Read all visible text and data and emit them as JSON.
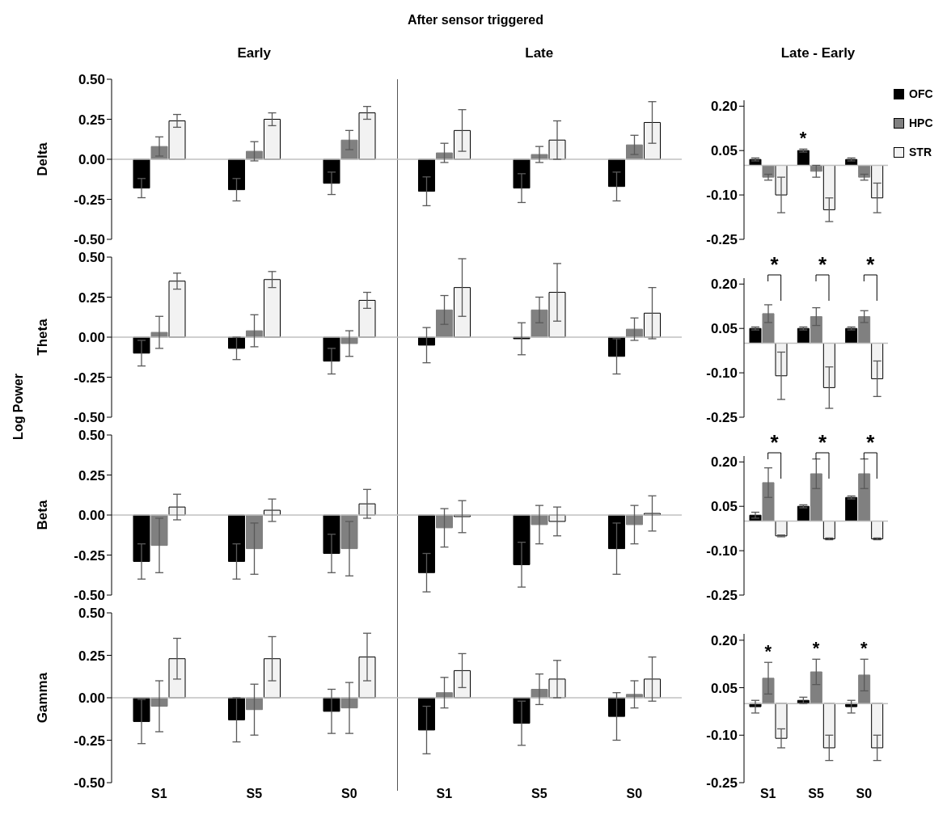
{
  "chart_data": [
    {
      "type": "bar",
      "ylabel": "Delta",
      "annotations": [
        "After sensor triggered",
        "Early",
        "Late",
        "Log Power"
      ],
      "categories": [
        null,
        null,
        null,
        null,
        null,
        null
      ],
      "series": [
        {
          "color": "#000000",
          "values": [
            -0.18,
            -0.19,
            -0.15,
            -0.2,
            -0.18,
            -0.17
          ],
          "errors": [
            0.06,
            0.07,
            0.07,
            0.09,
            0.09,
            0.09
          ]
        },
        {
          "color": "#808080",
          "values": [
            0.08,
            0.05,
            0.12,
            0.04,
            0.03,
            0.09
          ],
          "errors": [
            0.06,
            0.06,
            0.06,
            0.06,
            0.05,
            0.06
          ]
        },
        {
          "color": "#f2f2f2",
          "values": [
            0.24,
            0.25,
            0.29,
            0.18,
            0.12,
            0.23
          ],
          "errors": [
            0.04,
            0.04,
            0.04,
            0.13,
            0.12,
            0.13
          ]
        }
      ],
      "ylim": [
        -0.5,
        0.5
      ],
      "yticks": [
        {
          "value": 0.5,
          "label": "0.50"
        },
        {
          "value": 0.25,
          "label": "0.25"
        },
        {
          "value": 0,
          "label": "0.00"
        },
        {
          "value": -0.25,
          "label": "-0.25"
        },
        {
          "value": -0.5,
          "label": "-0.50"
        }
      ],
      "tick_labels": "y"
    },
    {
      "type": "bar",
      "title": "Late - Early",
      "legend": "top right",
      "categories": [
        null,
        null,
        null
      ],
      "annotations": [
        "*"
      ],
      "series": [
        {
          "name": "OFC",
          "color": "#000000",
          "values": [
            0.02,
            0.05,
            0.02
          ],
          "errors": [
            0.005,
            0.005,
            0.005
          ]
        },
        {
          "name": "HPC",
          "color": "#808080",
          "values": [
            -0.04,
            -0.02,
            -0.04
          ],
          "errors": [
            0.01,
            0.02,
            0.01
          ]
        },
        {
          "name": "STR",
          "color": "#f2f2f2",
          "values": [
            -0.1,
            -0.15,
            -0.11
          ],
          "errors": [
            0.06,
            0.04,
            0.05
          ]
        }
      ],
      "ylim": [
        -0.25,
        0.22
      ],
      "yticks": [
        {
          "value": 0.2,
          "label": "0.20"
        },
        {
          "value": 0.05,
          "label": "0.05"
        },
        {
          "value": -0.1,
          "label": "-0.10"
        },
        {
          "value": -0.25,
          "label": "-0.25"
        }
      ],
      "tick_labels": "y"
    },
    {
      "type": "bar",
      "ylabel": "Theta",
      "categories": [
        null,
        null,
        null,
        null,
        null,
        null
      ],
      "series": [
        {
          "color": "#000000",
          "values": [
            -0.1,
            -0.07,
            -0.15,
            -0.05,
            -0.01,
            -0.12
          ],
          "errors": [
            0.08,
            0.07,
            0.08,
            0.11,
            0.1,
            0.11
          ]
        },
        {
          "color": "#808080",
          "values": [
            0.03,
            0.04,
            -0.04,
            0.17,
            0.17,
            0.05
          ],
          "errors": [
            0.1,
            0.1,
            0.08,
            0.09,
            0.08,
            0.07
          ]
        },
        {
          "color": "#f2f2f2",
          "values": [
            0.35,
            0.36,
            0.23,
            0.31,
            0.28,
            0.15
          ],
          "errors": [
            0.05,
            0.05,
            0.05,
            0.18,
            0.18,
            0.16
          ]
        }
      ],
      "ylim": [
        -0.5,
        0.5
      ],
      "yticks": [
        {
          "value": 0.5,
          "label": "0.50"
        },
        {
          "value": 0.25,
          "label": "0.25"
        },
        {
          "value": 0,
          "label": "0.00"
        },
        {
          "value": -0.25,
          "label": "-0.25"
        },
        {
          "value": -0.5,
          "label": "-0.50"
        }
      ],
      "tick_labels": "y"
    },
    {
      "type": "bar",
      "categories": [
        null,
        null,
        null
      ],
      "annotations": [
        "*",
        "*",
        "*"
      ],
      "series": [
        {
          "color": "#000000",
          "values": [
            0.05,
            0.05,
            0.05
          ],
          "errors": [
            0.005,
            0.005,
            0.005
          ]
        },
        {
          "color": "#808080",
          "values": [
            0.1,
            0.09,
            0.09
          ],
          "errors": [
            0.03,
            0.03,
            0.02
          ]
        },
        {
          "color": "#f2f2f2",
          "values": [
            -0.11,
            -0.15,
            -0.12
          ],
          "errors": [
            0.08,
            0.07,
            0.06
          ]
        }
      ],
      "ylim": [
        -0.25,
        0.22
      ],
      "yticks": [
        {
          "value": 0.2,
          "label": "0.20"
        },
        {
          "value": 0.05,
          "label": "0.05"
        },
        {
          "value": -0.1,
          "label": "-0.10"
        },
        {
          "value": -0.25,
          "label": "-0.25"
        }
      ],
      "tick_labels": "y"
    },
    {
      "type": "bar",
      "ylabel": "Beta",
      "categories": [
        null,
        null,
        null,
        null,
        null,
        null
      ],
      "series": [
        {
          "color": "#000000",
          "values": [
            -0.29,
            -0.29,
            -0.24,
            -0.36,
            -0.31,
            -0.21
          ],
          "errors": [
            0.11,
            0.11,
            0.12,
            0.12,
            0.14,
            0.16
          ]
        },
        {
          "color": "#808080",
          "values": [
            -0.19,
            -0.21,
            -0.21,
            -0.08,
            -0.06,
            -0.06
          ],
          "errors": [
            0.17,
            0.16,
            0.17,
            0.12,
            0.12,
            0.12
          ]
        },
        {
          "color": "#f2f2f2",
          "values": [
            0.05,
            0.03,
            0.07,
            -0.01,
            -0.04,
            0.01
          ],
          "errors": [
            0.08,
            0.07,
            0.09,
            0.1,
            0.09,
            0.11
          ]
        }
      ],
      "ylim": [
        -0.5,
        0.5
      ],
      "yticks": [
        {
          "value": 0.5,
          "label": "0.50"
        },
        {
          "value": 0.25,
          "label": "0.25"
        },
        {
          "value": 0,
          "label": "0.00"
        },
        {
          "value": -0.25,
          "label": "-0.25"
        },
        {
          "value": -0.5,
          "label": "-0.50"
        }
      ],
      "tick_labels": "y"
    },
    {
      "type": "bar",
      "categories": [
        null,
        null,
        null
      ],
      "annotations": [
        "*",
        "*",
        "*"
      ],
      "series": [
        {
          "color": "#000000",
          "values": [
            0.02,
            0.05,
            0.08
          ],
          "errors": [
            0.01,
            0.005,
            0.005
          ]
        },
        {
          "color": "#808080",
          "values": [
            0.13,
            0.16,
            0.16
          ],
          "errors": [
            0.05,
            0.05,
            0.05
          ]
        },
        {
          "color": "#f2f2f2",
          "values": [
            -0.05,
            -0.06,
            -0.06
          ],
          "errors": [
            0.003,
            0.003,
            0.003
          ]
        }
      ],
      "ylim": [
        -0.25,
        0.22
      ],
      "yticks": [
        {
          "value": 0.2,
          "label": "0.20"
        },
        {
          "value": 0.05,
          "label": "0.05"
        },
        {
          "value": -0.1,
          "label": "-0.10"
        },
        {
          "value": -0.25,
          "label": "-0.25"
        }
      ],
      "tick_labels": "y"
    },
    {
      "type": "bar",
      "ylabel": "Gamma",
      "categories": [
        "S1",
        "S5",
        "S0",
        "S1",
        "S5",
        "S0"
      ],
      "series": [
        {
          "color": "#000000",
          "values": [
            -0.14,
            -0.13,
            -0.08,
            -0.19,
            -0.15,
            -0.11
          ],
          "errors": [
            0.13,
            0.13,
            0.13,
            0.14,
            0.13,
            0.14
          ]
        },
        {
          "color": "#808080",
          "values": [
            -0.05,
            -0.07,
            -0.06,
            0.03,
            0.05,
            0.02
          ],
          "errors": [
            0.15,
            0.15,
            0.15,
            0.09,
            0.09,
            0.08
          ]
        },
        {
          "color": "#f2f2f2",
          "values": [
            0.23,
            0.23,
            0.24,
            0.16,
            0.11,
            0.11
          ],
          "errors": [
            0.12,
            0.13,
            0.14,
            0.1,
            0.11,
            0.13
          ]
        }
      ],
      "ylim": [
        -0.5,
        0.5
      ],
      "yticks": [
        {
          "value": 0.5,
          "label": "0.50"
        },
        {
          "value": 0.25,
          "label": "0.25"
        },
        {
          "value": 0,
          "label": "0.00"
        },
        {
          "value": -0.25,
          "label": "-0.25"
        },
        {
          "value": -0.5,
          "label": "-0.50"
        }
      ]
    },
    {
      "type": "bar",
      "categories": [
        "S1",
        "S5",
        "S0"
      ],
      "annotations": [
        "*",
        "*",
        "*"
      ],
      "series": [
        {
          "color": "#000000",
          "values": [
            -0.01,
            0.01,
            -0.01
          ],
          "errors": [
            0.02,
            0.01,
            0.02
          ]
        },
        {
          "color": "#808080",
          "values": [
            0.08,
            0.1,
            0.09
          ],
          "errors": [
            0.05,
            0.04,
            0.05
          ]
        },
        {
          "color": "#f2f2f2",
          "values": [
            -0.11,
            -0.14,
            -0.14
          ],
          "errors": [
            0.03,
            0.04,
            0.04
          ]
        }
      ],
      "ylim": [
        -0.25,
        0.22
      ],
      "yticks": [
        {
          "value": 0.2,
          "label": "0.20"
        },
        {
          "value": 0.05,
          "label": "0.05"
        },
        {
          "value": -0.1,
          "label": "-0.10"
        },
        {
          "value": -0.25,
          "label": "-0.25"
        }
      ]
    }
  ]
}
